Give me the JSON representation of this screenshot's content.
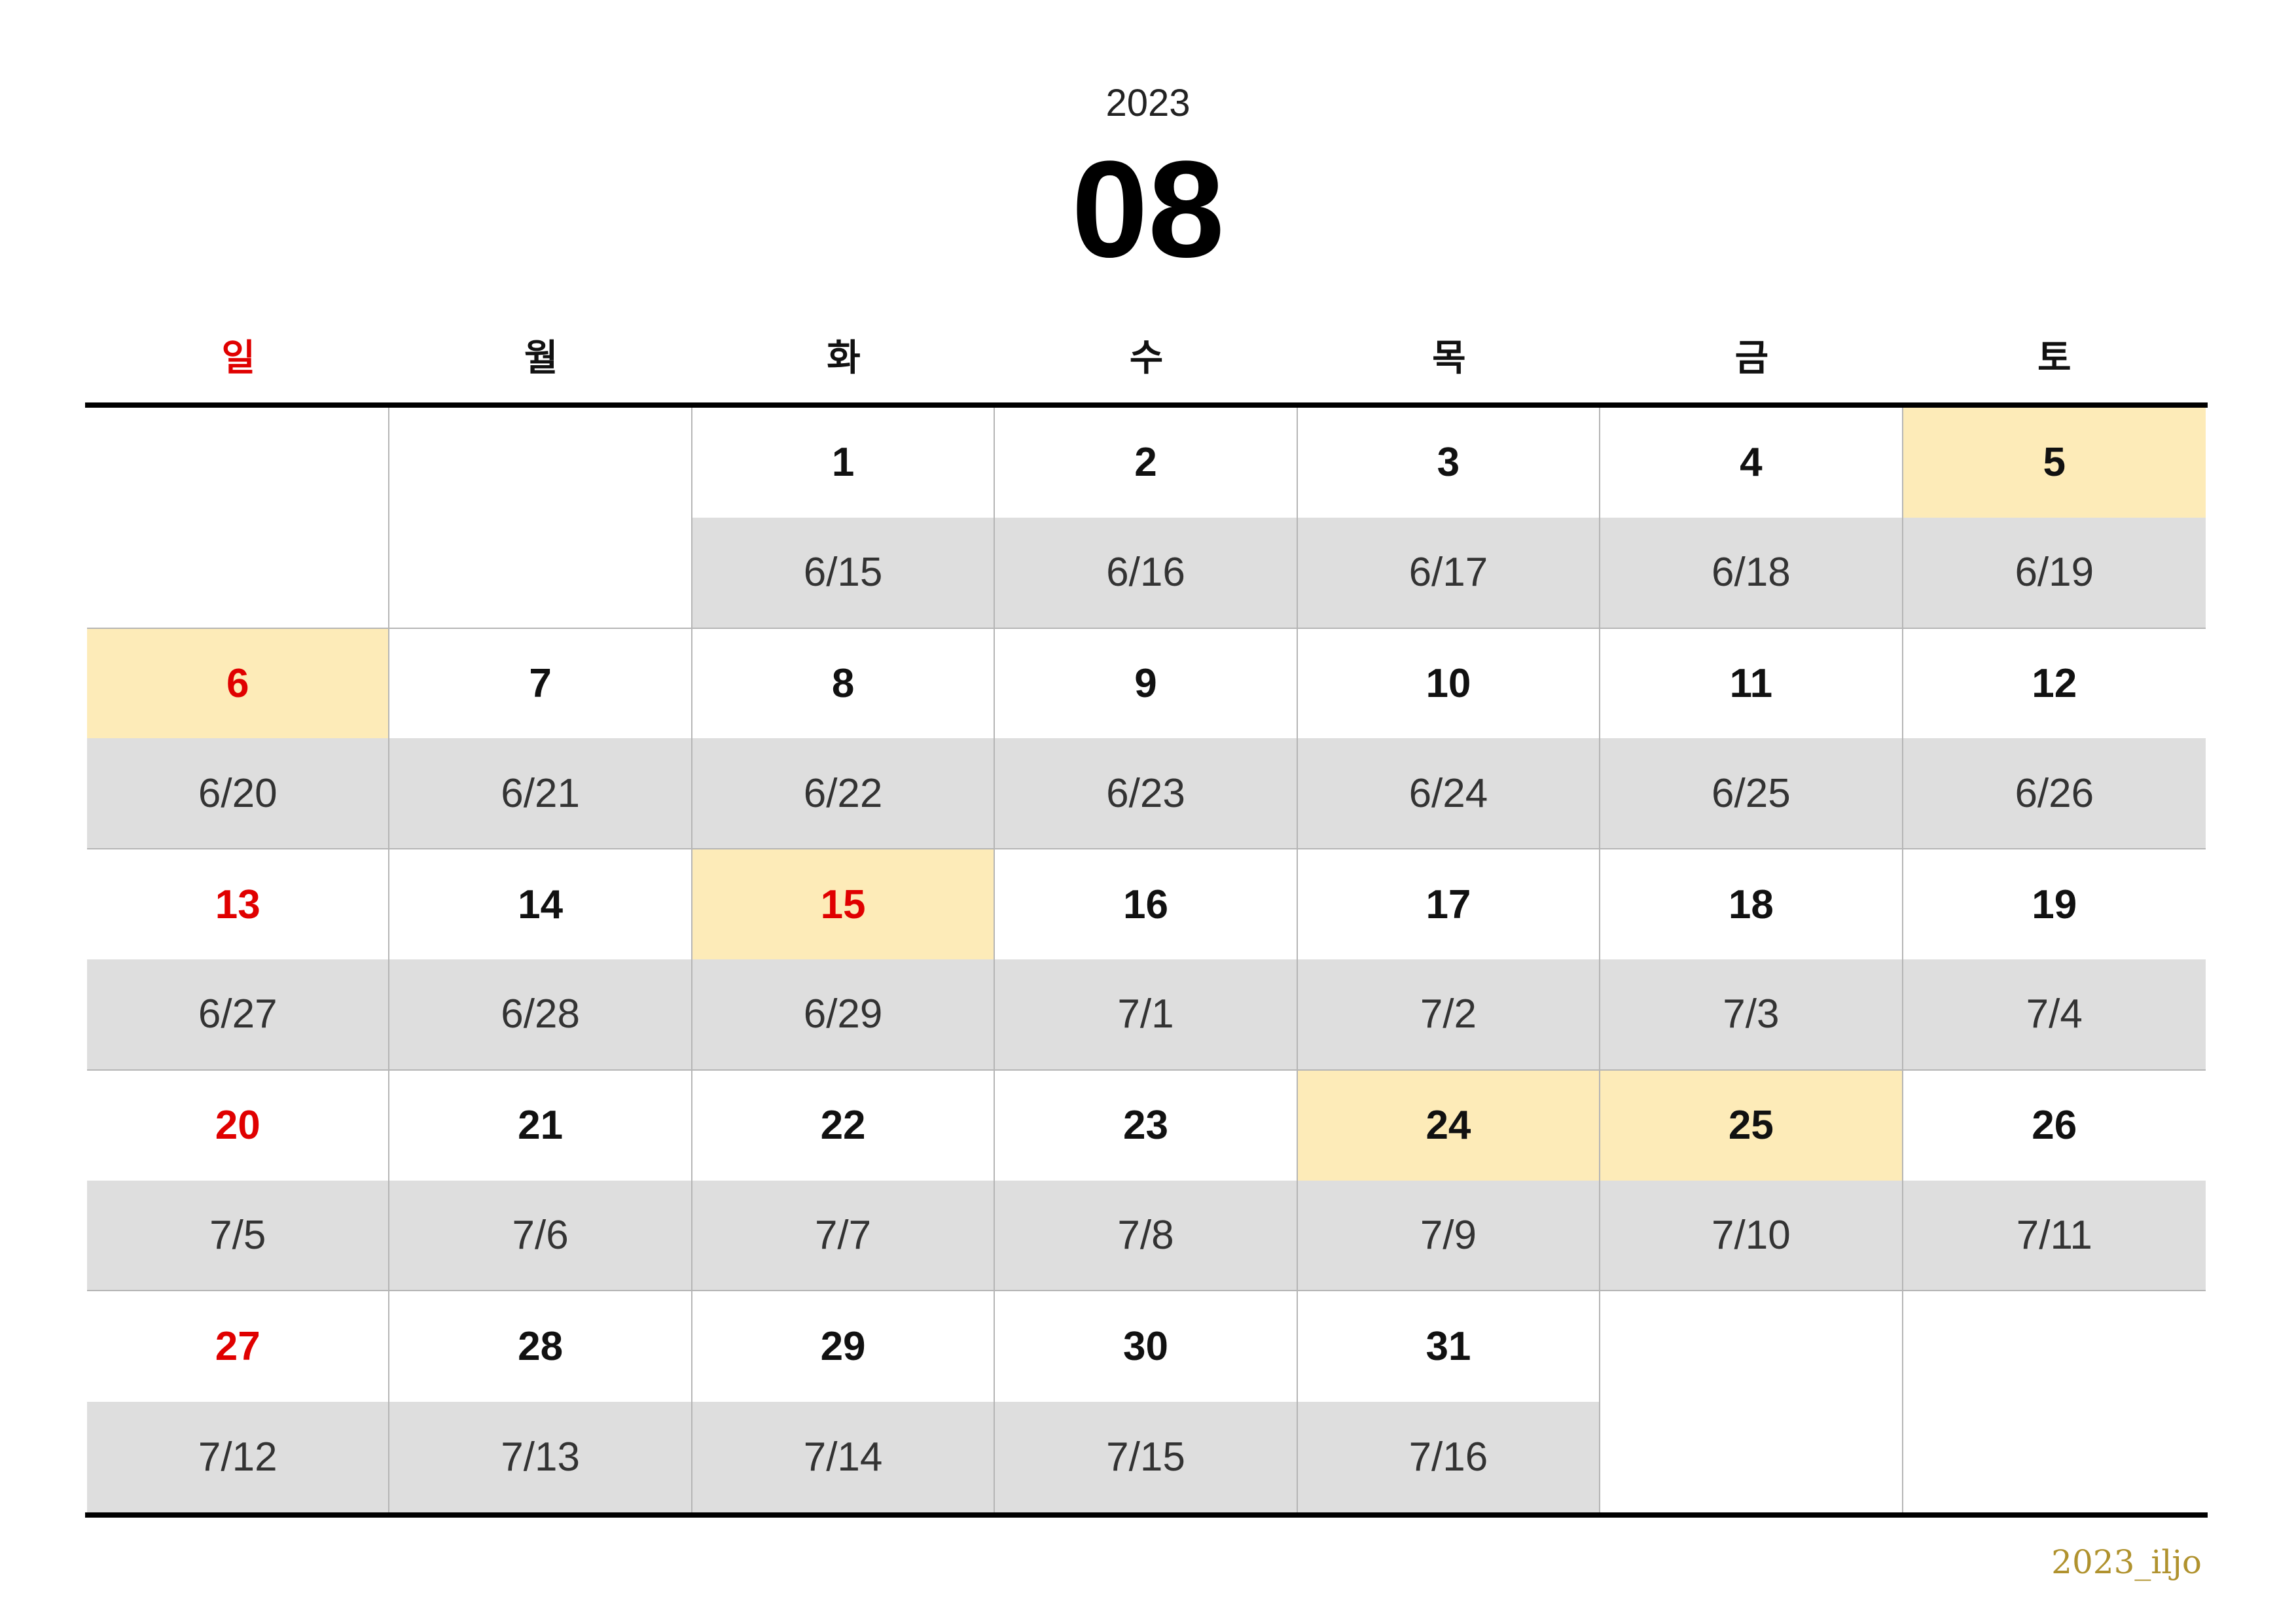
{
  "header": {
    "year": "2023",
    "month": "08"
  },
  "weekdays": [
    "일",
    "월",
    "화",
    "수",
    "목",
    "금",
    "토"
  ],
  "colors": {
    "sunday": "#e00000",
    "highlight": "#fdebb8",
    "lunar_band": "#dedede",
    "brand": "#b0922e"
  },
  "weeks": [
    [
      {
        "day": "",
        "lunar": "",
        "sunday": true,
        "highlight": false
      },
      {
        "day": "",
        "lunar": "",
        "sunday": false,
        "highlight": false
      },
      {
        "day": "1",
        "lunar": "6/15",
        "sunday": false,
        "highlight": false
      },
      {
        "day": "2",
        "lunar": "6/16",
        "sunday": false,
        "highlight": false
      },
      {
        "day": "3",
        "lunar": "6/17",
        "sunday": false,
        "highlight": false
      },
      {
        "day": "4",
        "lunar": "6/18",
        "sunday": false,
        "highlight": false
      },
      {
        "day": "5",
        "lunar": "6/19",
        "sunday": false,
        "highlight": true
      }
    ],
    [
      {
        "day": "6",
        "lunar": "6/20",
        "sunday": true,
        "highlight": true
      },
      {
        "day": "7",
        "lunar": "6/21",
        "sunday": false,
        "highlight": false
      },
      {
        "day": "8",
        "lunar": "6/22",
        "sunday": false,
        "highlight": false
      },
      {
        "day": "9",
        "lunar": "6/23",
        "sunday": false,
        "highlight": false
      },
      {
        "day": "10",
        "lunar": "6/24",
        "sunday": false,
        "highlight": false
      },
      {
        "day": "11",
        "lunar": "6/25",
        "sunday": false,
        "highlight": false
      },
      {
        "day": "12",
        "lunar": "6/26",
        "sunday": false,
        "highlight": false
      }
    ],
    [
      {
        "day": "13",
        "lunar": "6/27",
        "sunday": true,
        "highlight": false
      },
      {
        "day": "14",
        "lunar": "6/28",
        "sunday": false,
        "highlight": false
      },
      {
        "day": "15",
        "lunar": "6/29",
        "sunday": true,
        "highlight": true
      },
      {
        "day": "16",
        "lunar": "7/1",
        "sunday": false,
        "highlight": false
      },
      {
        "day": "17",
        "lunar": "7/2",
        "sunday": false,
        "highlight": false
      },
      {
        "day": "18",
        "lunar": "7/3",
        "sunday": false,
        "highlight": false
      },
      {
        "day": "19",
        "lunar": "7/4",
        "sunday": false,
        "highlight": false
      }
    ],
    [
      {
        "day": "20",
        "lunar": "7/5",
        "sunday": true,
        "highlight": false
      },
      {
        "day": "21",
        "lunar": "7/6",
        "sunday": false,
        "highlight": false
      },
      {
        "day": "22",
        "lunar": "7/7",
        "sunday": false,
        "highlight": false
      },
      {
        "day": "23",
        "lunar": "7/8",
        "sunday": false,
        "highlight": false
      },
      {
        "day": "24",
        "lunar": "7/9",
        "sunday": false,
        "highlight": true
      },
      {
        "day": "25",
        "lunar": "7/10",
        "sunday": false,
        "highlight": true
      },
      {
        "day": "26",
        "lunar": "7/11",
        "sunday": false,
        "highlight": false
      }
    ],
    [
      {
        "day": "27",
        "lunar": "7/12",
        "sunday": true,
        "highlight": false
      },
      {
        "day": "28",
        "lunar": "7/13",
        "sunday": false,
        "highlight": false
      },
      {
        "day": "29",
        "lunar": "7/14",
        "sunday": false,
        "highlight": false
      },
      {
        "day": "30",
        "lunar": "7/15",
        "sunday": false,
        "highlight": false
      },
      {
        "day": "31",
        "lunar": "7/16",
        "sunday": false,
        "highlight": false
      },
      {
        "day": "",
        "lunar": "",
        "sunday": false,
        "highlight": false
      },
      {
        "day": "",
        "lunar": "",
        "sunday": false,
        "highlight": false
      }
    ]
  ],
  "footer": {
    "brand": "2023_iljo"
  }
}
